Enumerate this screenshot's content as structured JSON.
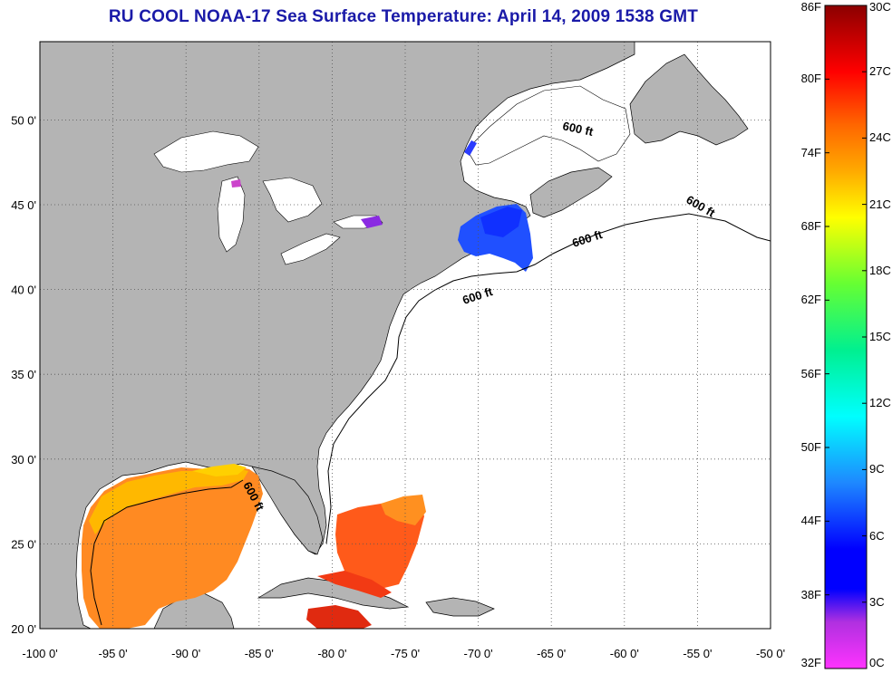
{
  "title": "RU COOL  NOAA-17  Sea Surface Temperature:  April 14, 2009 1538 GMT",
  "map": {
    "lat_ticks": [
      {
        "label": "50 0'",
        "lat": 50
      },
      {
        "label": "45 0'",
        "lat": 45
      },
      {
        "label": "40 0'",
        "lat": 40
      },
      {
        "label": "35 0'",
        "lat": 35
      },
      {
        "label": "30 0'",
        "lat": 30
      },
      {
        "label": "25 0'",
        "lat": 25
      },
      {
        "label": "20 0'",
        "lat": 20
      }
    ],
    "lon_ticks": [
      {
        "label": "-100 0'",
        "lon": -100
      },
      {
        "label": "-95 0'",
        "lon": -95
      },
      {
        "label": "-90 0'",
        "lon": -90
      },
      {
        "label": "-85 0'",
        "lon": -85
      },
      {
        "label": "-80 0'",
        "lon": -80
      },
      {
        "label": "-75 0'",
        "lon": -75
      },
      {
        "label": "-70 0'",
        "lon": -70
      },
      {
        "label": "-65 0'",
        "lon": -65
      },
      {
        "label": "-60 0'",
        "lon": -60
      },
      {
        "label": "-55 0'",
        "lon": -55
      },
      {
        "label": "-50 0'",
        "lon": -50
      }
    ],
    "depth_labels": [
      "600 ft",
      "600 ft",
      "600 ft",
      "600 ft",
      "600 ft"
    ],
    "colors": {
      "land": "#b4b4b4",
      "ocean": "#ffffff",
      "grid": "#555555"
    }
  },
  "colorbar": {
    "fahrenheit": [
      "86F",
      "80F",
      "74F",
      "68F",
      "62F",
      "56F",
      "50F",
      "44F",
      "38F",
      "32F"
    ],
    "celsius": [
      "30C",
      "27C",
      "24C",
      "21C",
      "18C",
      "15C",
      "12C",
      "9C",
      "6C",
      "3C",
      "0C"
    ],
    "range_c": [
      0,
      30
    ]
  }
}
